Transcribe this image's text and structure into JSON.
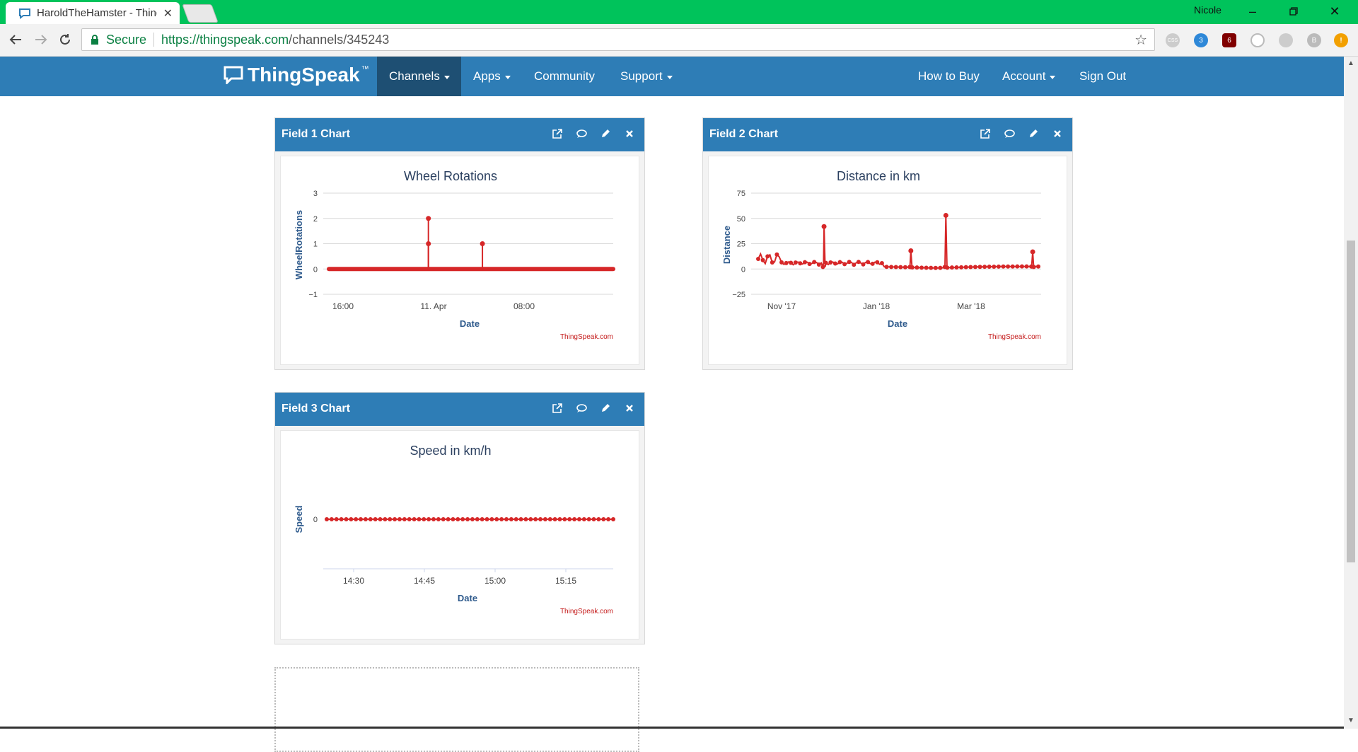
{
  "browser": {
    "tab_title": "HaroldTheHamster - ThingSpeak",
    "profile_name": "Nicole",
    "secure_label": "Secure",
    "url_host": "https://thingspeak.com",
    "url_path": "/channels/345243",
    "extensions": [
      {
        "name": "css-extension-icon",
        "label": "CSS"
      },
      {
        "name": "ghostery-icon",
        "label": "3"
      },
      {
        "name": "ublock-icon",
        "label": "6"
      },
      {
        "name": "sync-extension-icon",
        "label": ""
      },
      {
        "name": "lightbulb-extension-icon",
        "label": ""
      },
      {
        "name": "b-extension-icon",
        "label": "B"
      },
      {
        "name": "alert-extension-icon",
        "label": "!"
      }
    ],
    "accent_color": "#00c35b"
  },
  "nav": {
    "logo_text": "ThingSpeak",
    "logo_tm": "™",
    "items": {
      "channels": "Channels",
      "apps": "Apps",
      "community": "Community",
      "support": "Support",
      "how_to_buy": "How to Buy",
      "account": "Account",
      "sign_out": "Sign Out"
    },
    "bar_color": "#2e7db6"
  },
  "panels": [
    {
      "title": "Field 1 Chart"
    },
    {
      "title": "Field 2 Chart"
    },
    {
      "title": "Field 3 Chart"
    }
  ],
  "chart_data": [
    {
      "type": "line",
      "title": "Wheel Rotations",
      "xlabel": "Date",
      "ylabel": "WheelRotations",
      "ylim": [
        -1,
        3
      ],
      "yticks": [
        "3",
        "2",
        "1",
        "0",
        "−1"
      ],
      "xticks": [
        "16:00",
        "11. Apr",
        "08:00"
      ],
      "credit": "ThingSpeak.com",
      "series": [
        {
          "color": "#d62728",
          "baseline": 0,
          "spikes": [
            {
              "x": 0.35,
              "y": 2
            },
            {
              "x": 0.35,
              "y": 1
            },
            {
              "x": 0.54,
              "y": 1
            }
          ]
        }
      ]
    },
    {
      "type": "line",
      "title": "Distance in km",
      "xlabel": "Date",
      "ylabel": "Distance",
      "ylim": [
        -25,
        75
      ],
      "yticks": [
        "75",
        "50",
        "25",
        "0",
        "−25"
      ],
      "xticks": [
        "Nov '17",
        "Jan '18",
        "Mar '18"
      ],
      "credit": "ThingSpeak.com",
      "series": [
        {
          "color": "#d62728",
          "spikes": [
            {
              "x": 0.235,
              "y": 42
            },
            {
              "x": 0.545,
              "y": 18
            },
            {
              "x": 0.67,
              "y": 53
            },
            {
              "x": 0.98,
              "y": 17
            }
          ]
        }
      ]
    },
    {
      "type": "scatter",
      "title": "Speed in km/h",
      "xlabel": "Date",
      "ylabel": "Speed",
      "yticks": [
        "0"
      ],
      "xticks": [
        "14:30",
        "14:45",
        "15:00",
        "15:15"
      ],
      "credit": "ThingSpeak.com",
      "series": [
        {
          "color": "#d62728",
          "constant": 0,
          "points": 60
        }
      ]
    }
  ]
}
